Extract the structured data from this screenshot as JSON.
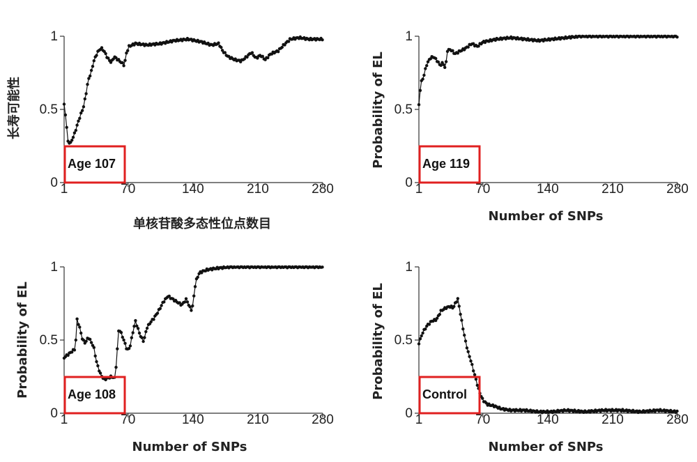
{
  "chart_data": [
    {
      "type": "scatter",
      "box_label": "Age 107",
      "xlabel": "单核苷酸多态性位点数目",
      "ylabel": "长寿可能性",
      "xticks": [
        1,
        70,
        140,
        210,
        280
      ],
      "yticks": [
        0,
        0.5,
        1
      ],
      "xlim": [
        1,
        280
      ],
      "ylim": [
        0,
        1
      ],
      "keypoints": [
        [
          1,
          0.53
        ],
        [
          3,
          0.44
        ],
        [
          5,
          0.28
        ],
        [
          8,
          0.27
        ],
        [
          12,
          0.33
        ],
        [
          17,
          0.43
        ],
        [
          22,
          0.52
        ],
        [
          25,
          0.62
        ],
        [
          27,
          0.7
        ],
        [
          30,
          0.75
        ],
        [
          33,
          0.83
        ],
        [
          37,
          0.89
        ],
        [
          41,
          0.92
        ],
        [
          44,
          0.9
        ],
        [
          48,
          0.85
        ],
        [
          52,
          0.82
        ],
        [
          55,
          0.86
        ],
        [
          59,
          0.84
        ],
        [
          63,
          0.82
        ],
        [
          66,
          0.8
        ],
        [
          68,
          0.88
        ],
        [
          71,
          0.93
        ],
        [
          78,
          0.95
        ],
        [
          90,
          0.94
        ],
        [
          105,
          0.95
        ],
        [
          120,
          0.97
        ],
        [
          135,
          0.98
        ],
        [
          150,
          0.96
        ],
        [
          160,
          0.94
        ],
        [
          168,
          0.95
        ],
        [
          172,
          0.9
        ],
        [
          178,
          0.86
        ],
        [
          185,
          0.84
        ],
        [
          192,
          0.83
        ],
        [
          198,
          0.86
        ],
        [
          203,
          0.89
        ],
        [
          208,
          0.85
        ],
        [
          213,
          0.87
        ],
        [
          218,
          0.84
        ],
        [
          224,
          0.88
        ],
        [
          232,
          0.9
        ],
        [
          238,
          0.94
        ],
        [
          245,
          0.98
        ],
        [
          255,
          0.99
        ],
        [
          265,
          0.98
        ],
        [
          280,
          0.98
        ]
      ]
    },
    {
      "type": "scatter",
      "box_label": "Age 119",
      "xlabel": "Number of SNPs",
      "ylabel": "Probability of EL",
      "xticks": [
        1,
        70,
        140,
        210,
        280
      ],
      "yticks": [
        0,
        0.5,
        1
      ],
      "xlim": [
        1,
        280
      ],
      "ylim": [
        0,
        1
      ],
      "keypoints": [
        [
          1,
          0.53
        ],
        [
          3,
          0.68
        ],
        [
          6,
          0.72
        ],
        [
          9,
          0.8
        ],
        [
          13,
          0.85
        ],
        [
          17,
          0.86
        ],
        [
          21,
          0.83
        ],
        [
          24,
          0.8
        ],
        [
          27,
          0.82
        ],
        [
          30,
          0.77
        ],
        [
          31,
          0.9
        ],
        [
          35,
          0.91
        ],
        [
          40,
          0.88
        ],
        [
          46,
          0.9
        ],
        [
          52,
          0.92
        ],
        [
          58,
          0.95
        ],
        [
          64,
          0.93
        ],
        [
          70,
          0.96
        ],
        [
          85,
          0.98
        ],
        [
          100,
          0.99
        ],
        [
          115,
          0.98
        ],
        [
          130,
          0.97
        ],
        [
          145,
          0.98
        ],
        [
          160,
          0.99
        ],
        [
          175,
          1.0
        ],
        [
          200,
          1.0
        ],
        [
          240,
          1.0
        ],
        [
          280,
          1.0
        ]
      ]
    },
    {
      "type": "scatter",
      "box_label": "Age 108",
      "xlabel": "Number of SNPs",
      "ylabel": "Probability of EL",
      "xticks": [
        1,
        70,
        140,
        210,
        280
      ],
      "yticks": [
        0,
        0.5,
        1
      ],
      "xlim": [
        1,
        280
      ],
      "ylim": [
        0,
        1
      ],
      "keypoints": [
        [
          1,
          0.38
        ],
        [
          5,
          0.4
        ],
        [
          9,
          0.42
        ],
        [
          13,
          0.44
        ],
        [
          15,
          0.64
        ],
        [
          18,
          0.58
        ],
        [
          21,
          0.5
        ],
        [
          24,
          0.48
        ],
        [
          27,
          0.52
        ],
        [
          30,
          0.49
        ],
        [
          33,
          0.45
        ],
        [
          36,
          0.35
        ],
        [
          40,
          0.27
        ],
        [
          44,
          0.23
        ],
        [
          48,
          0.24
        ],
        [
          52,
          0.25
        ],
        [
          56,
          0.24
        ],
        [
          58,
          0.4
        ],
        [
          60,
          0.58
        ],
        [
          63,
          0.54
        ],
        [
          66,
          0.49
        ],
        [
          69,
          0.43
        ],
        [
          72,
          0.45
        ],
        [
          75,
          0.55
        ],
        [
          78,
          0.63
        ],
        [
          81,
          0.57
        ],
        [
          84,
          0.52
        ],
        [
          87,
          0.49
        ],
        [
          90,
          0.58
        ],
        [
          94,
          0.62
        ],
        [
          98,
          0.65
        ],
        [
          103,
          0.7
        ],
        [
          108,
          0.76
        ],
        [
          113,
          0.8
        ],
        [
          118,
          0.78
        ],
        [
          123,
          0.76
        ],
        [
          128,
          0.74
        ],
        [
          133,
          0.78
        ],
        [
          136,
          0.73
        ],
        [
          139,
          0.7
        ],
        [
          143,
          0.9
        ],
        [
          147,
          0.96
        ],
        [
          155,
          0.98
        ],
        [
          165,
          0.99
        ],
        [
          180,
          1.0
        ],
        [
          210,
          1.0
        ],
        [
          245,
          1.0
        ],
        [
          280,
          1.0
        ]
      ]
    },
    {
      "type": "scatter",
      "box_label": "Control",
      "xlabel": "Number of SNPs",
      "ylabel": "Probability of EL",
      "xticks": [
        1,
        70,
        140,
        210,
        280
      ],
      "yticks": [
        0,
        0.5,
        1
      ],
      "xlim": [
        1,
        280
      ],
      "ylim": [
        0,
        1
      ],
      "keypoints": [
        [
          1,
          0.48
        ],
        [
          5,
          0.55
        ],
        [
          10,
          0.6
        ],
        [
          15,
          0.63
        ],
        [
          20,
          0.64
        ],
        [
          25,
          0.7
        ],
        [
          30,
          0.72
        ],
        [
          35,
          0.73
        ],
        [
          38,
          0.72
        ],
        [
          41,
          0.76
        ],
        [
          43,
          0.78
        ],
        [
          45,
          0.71
        ],
        [
          48,
          0.6
        ],
        [
          51,
          0.5
        ],
        [
          54,
          0.42
        ],
        [
          57,
          0.36
        ],
        [
          60,
          0.29
        ],
        [
          63,
          0.22
        ],
        [
          66,
          0.15
        ],
        [
          70,
          0.09
        ],
        [
          75,
          0.06
        ],
        [
          82,
          0.05
        ],
        [
          90,
          0.03
        ],
        [
          100,
          0.02
        ],
        [
          115,
          0.02
        ],
        [
          130,
          0.01
        ],
        [
          145,
          0.01
        ],
        [
          160,
          0.02
        ],
        [
          180,
          0.01
        ],
        [
          200,
          0.02
        ],
        [
          220,
          0.02
        ],
        [
          240,
          0.01
        ],
        [
          260,
          0.02
        ],
        [
          280,
          0.01
        ]
      ]
    }
  ]
}
